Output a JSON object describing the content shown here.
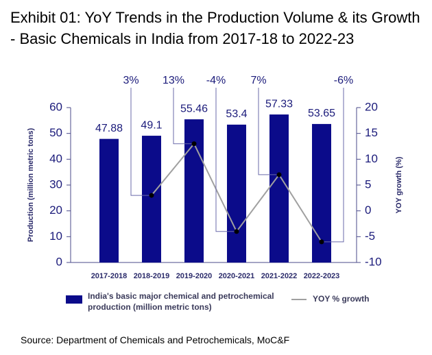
{
  "chart_data": {
    "type": "bar",
    "title": "Exhibit 01: YoY Trends in the Production Volume & its Growth - Basic Chemicals in India from 2017-18 to 2022-23",
    "y_label": "Production (million metric tons)",
    "y2_label": "YOY growth (%)",
    "categories": [
      "2017-2018",
      "2018-2019",
      "2019-2020",
      "2020-2021",
      "2021-2022",
      "2022-2023"
    ],
    "series": [
      {
        "name": "India's basic major chemical and petrochemical production (million metric tons)",
        "type": "bar",
        "color": "#0b0b8a",
        "values": [
          47.88,
          49.1,
          55.46,
          53.4,
          57.33,
          53.65
        ]
      },
      {
        "name": "YOY % growth",
        "type": "line",
        "axis": "y2",
        "color": "#a0a0a0",
        "values": [
          null,
          3,
          13,
          -4,
          7,
          -6
        ],
        "value_labels": [
          null,
          "3%",
          "13%",
          "-4%",
          "7%",
          "-6%"
        ]
      }
    ],
    "ylim": [
      0,
      60
    ],
    "yticks": [
      0,
      10,
      20,
      30,
      40,
      50,
      60
    ],
    "y2lim": [
      -10,
      20
    ],
    "y2ticks": [
      -10,
      -5,
      0,
      5,
      10,
      15,
      20
    ],
    "source": "Source: Department of Chemicals and Petrochemicals, MoC&F"
  }
}
